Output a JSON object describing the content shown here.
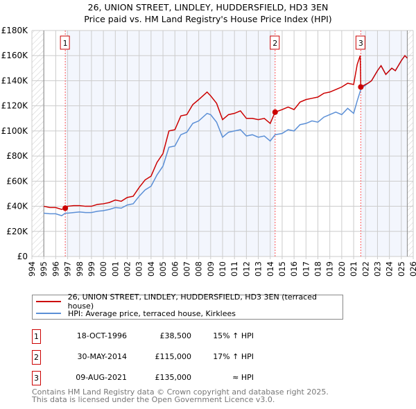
{
  "chart_data": {
    "type": "line",
    "title": "26, UNION STREET, LINDLEY, HUDDERSFIELD, HD3 3EN",
    "subtitle": "Price paid vs. HM Land Registry's House Price Index (HPI)",
    "xlim": [
      1994,
      2026
    ],
    "ylim": [
      0,
      180000
    ],
    "x_ticks": [
      "1994",
      "1995",
      "1996",
      "1997",
      "1998",
      "1999",
      "2000",
      "2001",
      "2002",
      "2003",
      "2004",
      "2005",
      "2006",
      "2007",
      "2008",
      "2009",
      "2010",
      "2011",
      "2012",
      "2013",
      "2014",
      "2015",
      "2016",
      "2017",
      "2018",
      "2019",
      "2020",
      "2021",
      "2022",
      "2023",
      "2024",
      "2025",
      "2026"
    ],
    "y_ticks": [
      "£0",
      "£20K",
      "£40K",
      "£60K",
      "£80K",
      "£100K",
      "£120K",
      "£140K",
      "£160K",
      "£180K"
    ],
    "grid": true,
    "series": [
      {
        "name": "26, UNION STREET, LINDLEY, HUDDERSFIELD, HD3 3EN (terraced house)",
        "color": "#cc0000",
        "x": [
          1995,
          1995.5,
          1996,
          1996.5,
          1996.8,
          1997,
          1997.5,
          1998,
          1998.5,
          1999,
          1999.5,
          2000,
          2000.5,
          2001,
          2001.5,
          2002,
          2002.5,
          2003,
          2003.5,
          2004,
          2004.5,
          2005,
          2005.5,
          2006,
          2006.5,
          2007,
          2007.5,
          2008,
          2008.7,
          2009,
          2009.5,
          2010,
          2010.5,
          2011,
          2011.5,
          2012,
          2012.5,
          2013,
          2013.5,
          2014,
          2014.41,
          2015,
          2015.5,
          2016,
          2016.5,
          2017,
          2017.5,
          2018,
          2018.5,
          2019,
          2019.5,
          2020,
          2020.5,
          2021,
          2021.3,
          2021.55,
          2021.6,
          2021.8,
          2022.2,
          2022.5,
          2023,
          2023.3,
          2023.7,
          2024.2,
          2024.5,
          2025,
          2025.3,
          2025.5
        ],
        "y": [
          40000,
          39000,
          39000,
          37500,
          38500,
          40000,
          40500,
          40500,
          40000,
          40000,
          41500,
          42000,
          43000,
          45000,
          44000,
          47000,
          48000,
          55000,
          61000,
          64000,
          75000,
          82000,
          100000,
          101000,
          112000,
          113000,
          121000,
          125000,
          131000,
          128000,
          122000,
          109000,
          113000,
          114000,
          116000,
          110000,
          110000,
          109000,
          110000,
          106000,
          115000,
          117000,
          119000,
          117000,
          123000,
          125000,
          126000,
          127000,
          130000,
          131000,
          133000,
          135000,
          138000,
          137000,
          153000,
          160000,
          135000,
          136000,
          138000,
          140000,
          148000,
          152000,
          145000,
          150000,
          148000,
          156000,
          160000,
          158000
        ]
      },
      {
        "name": "HPI: Average price, terraced house, Kirklees",
        "color": "#5b8fd6",
        "x": [
          1995,
          1995.5,
          1996,
          1996.5,
          1996.8,
          1997,
          1997.5,
          1998,
          1998.5,
          1999,
          1999.5,
          2000,
          2000.5,
          2001,
          2001.5,
          2002,
          2002.5,
          2003,
          2003.5,
          2004,
          2004.5,
          2005,
          2005.5,
          2006,
          2006.5,
          2007,
          2007.5,
          2008,
          2008.7,
          2009,
          2009.5,
          2010,
          2010.5,
          2011,
          2011.5,
          2012,
          2012.5,
          2013,
          2013.5,
          2014,
          2014.41,
          2015,
          2015.5,
          2016,
          2016.5,
          2017,
          2017.5,
          2018,
          2018.5,
          2019,
          2019.5,
          2020,
          2020.5,
          2021,
          2021.3,
          2021.6,
          2021.8,
          2022.2,
          2022.5,
          2023,
          2023.3,
          2023.7,
          2024.2,
          2024.5,
          2025,
          2025.3,
          2025.5
        ],
        "y": [
          34500,
          34000,
          34000,
          32500,
          34500,
          34500,
          35000,
          35500,
          35000,
          35000,
          36000,
          36500,
          37500,
          39000,
          38500,
          41000,
          42000,
          48000,
          53000,
          56000,
          65000,
          72000,
          87000,
          88000,
          97000,
          99000,
          106000,
          108000,
          114000,
          113000,
          107000,
          95000,
          99000,
          100000,
          101000,
          96000,
          97000,
          95000,
          96000,
          92000,
          97000,
          98000,
          101000,
          100000,
          105000,
          106000,
          108000,
          107000,
          111000,
          113000,
          115000,
          113000,
          118000,
          114000,
          124000,
          133000,
          135000,
          138000,
          140000,
          148000,
          152000,
          145000,
          150000,
          148000,
          156000,
          160000,
          158000
        ]
      }
    ],
    "sales": [
      {
        "label": "1",
        "date": "18-OCT-1996",
        "price": "£38,500",
        "hpi": "15% ↑ HPI",
        "x": 1996.8,
        "y": 38500
      },
      {
        "label": "2",
        "date": "30-MAY-2014",
        "price": "£115,000",
        "hpi": "17% ↑ HPI",
        "x": 2014.41,
        "y": 115000
      },
      {
        "label": "3",
        "date": "09-AUG-2021",
        "price": "£135,000",
        "hpi": "≈ HPI",
        "x": 2021.6,
        "y": 135000
      }
    ]
  },
  "legend": {
    "property": "26, UNION STREET, LINDLEY, HUDDERSFIELD, HD3 3EN (terraced house)",
    "hpi": "HPI: Average price, terraced house, Kirklees"
  },
  "footer": {
    "line1": "Contains HM Land Registry data © Crown copyright and database right 2025.",
    "line2": "This data is licensed under the Open Government Licence v3.0."
  }
}
